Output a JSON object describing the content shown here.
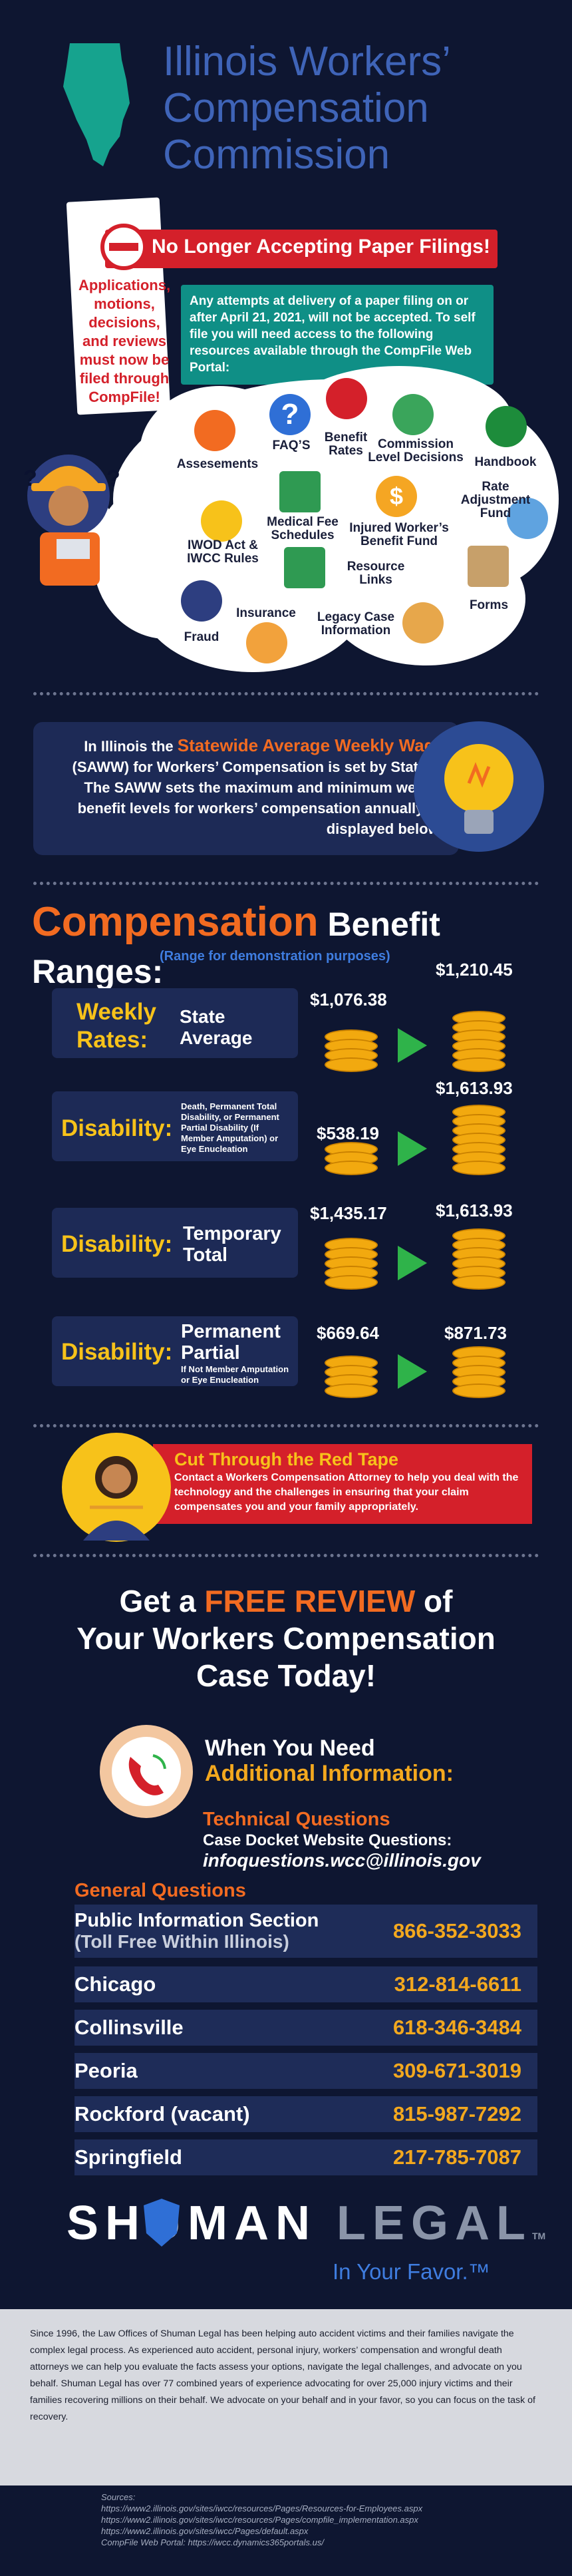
{
  "header": {
    "title_line1": "Illinois Workers’",
    "title_line2": "Compensation",
    "title_line3": "Commission"
  },
  "notice": {
    "banner": "No Longer Accepting Paper Filings!",
    "left_text": "Applications, motions, decisions, and reviews must now be filed through CompFile!",
    "body": "Any attempts at delivery of a paper filing on or after April 21, 2021, will not be accepted. To self file you will need access to the following resources available through the CompFile Web Portal:"
  },
  "resources": [
    "FAQ’S",
    "Benefit Rates",
    "Commission Level Decisions",
    "Handbook",
    "Assesements",
    "Rate Adjustment Fund",
    "Medical Fee Schedules",
    "Injured Worker’s Benefit Fund",
    "IWOD Act & IWCC Rules",
    "Resource Links",
    "Forms",
    "Insurance",
    "Legacy Case Information",
    "Fraud"
  ],
  "saww": {
    "prefix": "In Illinois the ",
    "highlight": "Statewide Average Weekly Wage",
    "rest": "(SAWW) for Workers’ Compensation is set by Statute. The SAWW sets the maximum and minimum weekly benefit levels for workers’ compensation annually as displayed below:"
  },
  "ranges": {
    "title_a": "Compensation",
    "title_b": " Benefit Ranges:",
    "subtitle": "(Range for demonstration purposes)",
    "rows": [
      {
        "label": "Weekly Rates:",
        "desc": "State Average",
        "note": "",
        "min": "$1,076.38",
        "max": "$1,210.45"
      },
      {
        "label": "Disability:",
        "desc": "",
        "note": "Death, Permanent Total Disability, or Permanent Partial Disability (If Member Amputation) or Eye Enucleation",
        "min": "$538.19",
        "max": "$1,613.93"
      },
      {
        "label": "Disability:",
        "desc": "Temporary Total",
        "note": "",
        "min": "$1,435.17",
        "max": "$1,613.93"
      },
      {
        "label": "Disability:",
        "desc": "Permanent Partial",
        "note": "If Not Member Amputation or Eye Enucleation",
        "min": "$669.64",
        "max": "$871.73"
      }
    ]
  },
  "red_tape": {
    "title": "Cut Through the Red Tape",
    "body": "Contact a Workers Compensation Attorney to help you deal with the technology and the challenges in ensuring that your claim compensates you and your family appropriately."
  },
  "free_review": {
    "line1_a": "Get a ",
    "line1_b": "FREE REVIEW",
    "line1_c": " of",
    "line2": "Your Workers Compensation",
    "line3": "Case Today!"
  },
  "contact": {
    "heading1": "When You Need",
    "heading2": "Additional Information:",
    "tech_title": "Technical Questions",
    "tech_line": "Case Docket Website Questions:",
    "email": "infoquestions.wcc@illinois.gov",
    "general_title": "General Questions",
    "rows": [
      {
        "name": "Public Information Section",
        "sub": "(Toll Free Within Illinois)",
        "phone": "866-352-3033"
      },
      {
        "name": "Chicago",
        "sub": "",
        "phone": "312-814-6611"
      },
      {
        "name": "Collinsville",
        "sub": "",
        "phone": "618-346-3484"
      },
      {
        "name": "Peoria",
        "sub": "",
        "phone": "309-671-3019"
      },
      {
        "name": "Rockford (vacant)",
        "sub": "",
        "phone": "815-987-7292"
      },
      {
        "name": "Springfield",
        "sub": "",
        "phone": "217-785-7087"
      }
    ]
  },
  "brand": {
    "name_a": "SHUMAN",
    "name_b": "LEGAL",
    "tm": "TM",
    "tagline": "In Your Favor.™"
  },
  "about": "Since 1996, the Law Offices of Shuman Legal has been helping auto accident victims and their families navigate the complex legal process. As experienced auto accident, personal injury, workers’ compensation and wrongful death attorneys we can help you evaluate the facts assess your options, navigate the legal challenges, and advocate on you behalf. Shuman Legal has over 77 combined years of experience advocating for over 25,000 injury victims and their families recovering millions on their behalf. We advocate on your behalf and in your favor, so you can focus on the task of recovery.",
  "sources": {
    "title": "Sources:",
    "lines": [
      "https://www2.illinois.gov/sites/iwcc/resources/Pages/Resources-for-Employees.aspx",
      "https://www2.illinois.gov/sites/iwcc/resources/Pages/compfile_implementation.aspx",
      "https://www2.illinois.gov/sites/iwcc/Pages/default.aspx",
      "CompFile Web Portal: https://iwcc.dynamics365portals.us/"
    ]
  },
  "colors": {
    "background": "#0e1631",
    "accent_orange": "#f26b21",
    "accent_yellow": "#f7c21a",
    "teal": "#0f8f86",
    "red": "#d4202a",
    "title_blue": "#3f64b8"
  }
}
